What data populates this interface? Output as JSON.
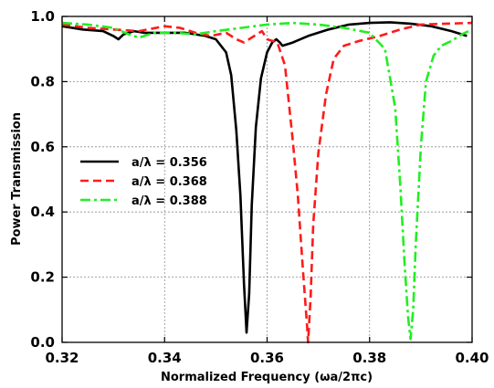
{
  "chart_data": {
    "type": "line",
    "title": "",
    "xlabel": "Normalized Frequency (ωa/2πc)",
    "ylabel": "Power Transmission",
    "xlim": [
      0.32,
      0.4
    ],
    "ylim": [
      0.0,
      1.0
    ],
    "grid": true,
    "legend_position": "middle-left",
    "x_ticks": [
      "0.32",
      "0.34",
      "0.36",
      "0.38",
      "0.40"
    ],
    "y_ticks": [
      "0.0",
      "0.2",
      "0.4",
      "0.6",
      "0.8",
      "1.0"
    ],
    "series": [
      {
        "name": "a/λ = 0.356",
        "color": "#000000",
        "dash": "solid",
        "x": [
          0.32,
          0.324,
          0.328,
          0.33,
          0.331,
          0.332,
          0.334,
          0.336,
          0.34,
          0.344,
          0.348,
          0.35,
          0.352,
          0.353,
          0.354,
          0.3548,
          0.3555,
          0.356,
          0.3565,
          0.357,
          0.3578,
          0.3588,
          0.36,
          0.361,
          0.3618,
          0.3625,
          0.363,
          0.365,
          0.368,
          0.372,
          0.376,
          0.38,
          0.384,
          0.388,
          0.392,
          0.396,
          0.399
        ],
        "y": [
          0.97,
          0.96,
          0.955,
          0.94,
          0.93,
          0.945,
          0.955,
          0.95,
          0.95,
          0.95,
          0.94,
          0.93,
          0.89,
          0.82,
          0.65,
          0.45,
          0.18,
          0.03,
          0.15,
          0.42,
          0.66,
          0.81,
          0.89,
          0.92,
          0.93,
          0.92,
          0.91,
          0.92,
          0.94,
          0.96,
          0.975,
          0.98,
          0.982,
          0.978,
          0.97,
          0.955,
          0.94
        ]
      },
      {
        "name": "a/λ = 0.368",
        "color": "#ff1a1a",
        "dash": "dashed",
        "x": [
          0.32,
          0.325,
          0.33,
          0.335,
          0.34,
          0.343,
          0.346,
          0.349,
          0.352,
          0.354,
          0.3555,
          0.3575,
          0.359,
          0.36,
          0.362,
          0.3635,
          0.365,
          0.366,
          0.367,
          0.3678,
          0.368,
          0.3685,
          0.369,
          0.37,
          0.3715,
          0.373,
          0.375,
          0.378,
          0.382,
          0.386,
          0.39,
          0.395,
          0.4
        ],
        "y": [
          0.975,
          0.965,
          0.96,
          0.955,
          0.97,
          0.965,
          0.95,
          0.94,
          0.95,
          0.93,
          0.92,
          0.94,
          0.955,
          0.93,
          0.92,
          0.85,
          0.62,
          0.45,
          0.22,
          0.05,
          0.0,
          0.14,
          0.36,
          0.58,
          0.76,
          0.87,
          0.91,
          0.925,
          0.94,
          0.96,
          0.975,
          0.978,
          0.98
        ]
      },
      {
        "name": "a/λ = 0.388",
        "color": "#22ee22",
        "dash": "dashdot",
        "x": [
          0.32,
          0.325,
          0.33,
          0.333,
          0.335,
          0.338,
          0.342,
          0.346,
          0.35,
          0.355,
          0.36,
          0.365,
          0.37,
          0.375,
          0.38,
          0.383,
          0.385,
          0.386,
          0.3868,
          0.3875,
          0.388,
          0.3885,
          0.389,
          0.39,
          0.391,
          0.3925,
          0.394,
          0.396,
          0.398,
          0.4
        ],
        "y": [
          0.98,
          0.975,
          0.965,
          0.945,
          0.935,
          0.95,
          0.95,
          0.945,
          0.955,
          0.965,
          0.975,
          0.98,
          0.975,
          0.965,
          0.95,
          0.9,
          0.72,
          0.48,
          0.25,
          0.08,
          0.01,
          0.1,
          0.3,
          0.6,
          0.8,
          0.88,
          0.91,
          0.925,
          0.945,
          0.96
        ]
      }
    ]
  }
}
